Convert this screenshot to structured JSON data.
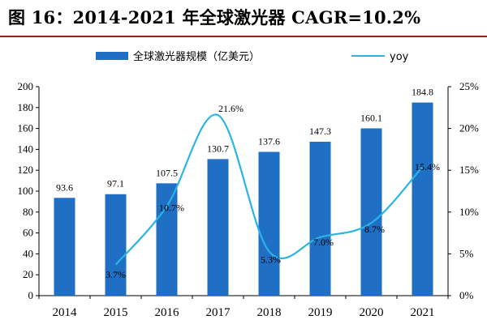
{
  "figure": {
    "title": "图 16：2014-2021 年全球激光器 CAGR=10.2%"
  },
  "chart_data": {
    "type": "bar",
    "title": "",
    "categories": [
      "2014",
      "2015",
      "2016",
      "2017",
      "2018",
      "2019",
      "2020",
      "2021"
    ],
    "series": [
      {
        "name": "全球激光器规模（亿美元）",
        "kind": "bar",
        "axis": "left",
        "color": "#1f6fc5",
        "values": [
          93.6,
          97.1,
          107.5,
          130.7,
          137.6,
          147.3,
          160.1,
          184.8
        ],
        "labels": [
          "93.6",
          "97.1",
          "107.5",
          "130.7",
          "137.6",
          "147.3",
          "160.1",
          "184.8"
        ]
      },
      {
        "name": "yoy",
        "kind": "line",
        "axis": "right",
        "color": "#2ab4e6",
        "values": [
          null,
          3.7,
          10.7,
          21.6,
          5.3,
          7.0,
          8.7,
          15.4
        ],
        "labels": [
          "",
          "3.7%",
          "10.7%",
          "21.6%",
          "5.3%",
          "7.0%",
          "8.7%",
          "15.4%"
        ]
      }
    ],
    "y_left": {
      "ylim": [
        0,
        200
      ],
      "ticks": [
        0,
        20,
        40,
        60,
        80,
        100,
        120,
        140,
        160,
        180,
        200
      ],
      "tick_labels": [
        "0",
        "20",
        "40",
        "60",
        "80",
        "100",
        "120",
        "140",
        "160",
        "180",
        "200"
      ]
    },
    "y_right": {
      "ylim": [
        0,
        25
      ],
      "ticks": [
        0,
        5,
        10,
        15,
        20,
        25
      ],
      "tick_labels": [
        "0%",
        "5%",
        "10%",
        "15%",
        "20%",
        "25%"
      ]
    },
    "legend": {
      "position": "top"
    },
    "grid": false
  }
}
